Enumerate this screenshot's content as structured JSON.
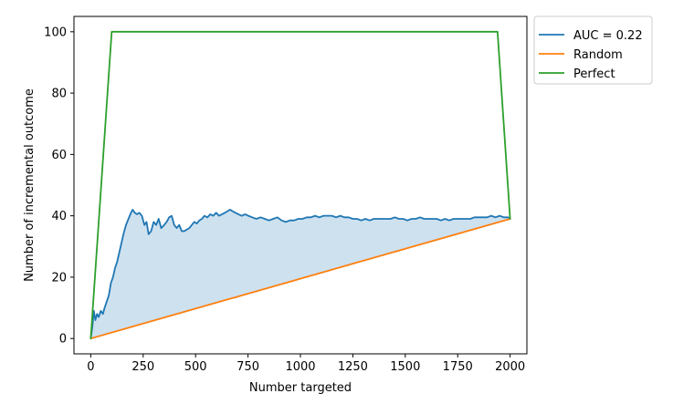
{
  "chart_data": {
    "type": "line",
    "xlabel": "Number targeted",
    "ylabel": "Number of incremental outcome",
    "xlim": [
      -80,
      2080
    ],
    "ylim": [
      -5,
      105
    ],
    "x_ticks": [
      0,
      250,
      500,
      750,
      1000,
      1250,
      1500,
      1750,
      2000
    ],
    "y_ticks": [
      0,
      20,
      40,
      60,
      80,
      100
    ],
    "legend_position": "upper left, outside plot area (right side)",
    "fill_between": {
      "upper": "AUC = 0.22",
      "lower": "Random",
      "color": "#1f77b4",
      "opacity": 0.22
    },
    "series": [
      {
        "name": "AUC = 0.22",
        "color": "#1f77b4",
        "points": [
          [
            0,
            0
          ],
          [
            8,
            4
          ],
          [
            15,
            9
          ],
          [
            22,
            6
          ],
          [
            30,
            8
          ],
          [
            38,
            7
          ],
          [
            48,
            9
          ],
          [
            58,
            8
          ],
          [
            66,
            10
          ],
          [
            76,
            12
          ],
          [
            86,
            14
          ],
          [
            96,
            18
          ],
          [
            106,
            20
          ],
          [
            116,
            23
          ],
          [
            126,
            25
          ],
          [
            136,
            28
          ],
          [
            146,
            31
          ],
          [
            156,
            34
          ],
          [
            168,
            37
          ],
          [
            180,
            39
          ],
          [
            192,
            41
          ],
          [
            200,
            42
          ],
          [
            210,
            41
          ],
          [
            220,
            40.5
          ],
          [
            232,
            41
          ],
          [
            244,
            40
          ],
          [
            256,
            37
          ],
          [
            266,
            38
          ],
          [
            276,
            34
          ],
          [
            288,
            35
          ],
          [
            300,
            38
          ],
          [
            312,
            37
          ],
          [
            324,
            39
          ],
          [
            336,
            36
          ],
          [
            350,
            37
          ],
          [
            362,
            38
          ],
          [
            374,
            39.5
          ],
          [
            386,
            40
          ],
          [
            398,
            37
          ],
          [
            410,
            36
          ],
          [
            422,
            37
          ],
          [
            434,
            35
          ],
          [
            446,
            35
          ],
          [
            458,
            35.5
          ],
          [
            470,
            36
          ],
          [
            482,
            37
          ],
          [
            494,
            38
          ],
          [
            506,
            37.5
          ],
          [
            518,
            38.5
          ],
          [
            530,
            39
          ],
          [
            542,
            40
          ],
          [
            556,
            39.5
          ],
          [
            570,
            40.5
          ],
          [
            584,
            40
          ],
          [
            598,
            41
          ],
          [
            612,
            40
          ],
          [
            626,
            40.5
          ],
          [
            640,
            41
          ],
          [
            652,
            41.5
          ],
          [
            664,
            42
          ],
          [
            676,
            41.5
          ],
          [
            690,
            41
          ],
          [
            704,
            40.5
          ],
          [
            720,
            40
          ],
          [
            736,
            40.5
          ],
          [
            752,
            40
          ],
          [
            770,
            39.5
          ],
          [
            790,
            39
          ],
          [
            810,
            39.5
          ],
          [
            830,
            39
          ],
          [
            850,
            38.5
          ],
          [
            870,
            39
          ],
          [
            890,
            39.5
          ],
          [
            910,
            38.5
          ],
          [
            930,
            38
          ],
          [
            950,
            38.5
          ],
          [
            970,
            38.5
          ],
          [
            990,
            39
          ],
          [
            1010,
            39
          ],
          [
            1030,
            39.5
          ],
          [
            1050,
            39.5
          ],
          [
            1070,
            40
          ],
          [
            1090,
            39.5
          ],
          [
            1110,
            40
          ],
          [
            1130,
            40
          ],
          [
            1150,
            40
          ],
          [
            1170,
            39.5
          ],
          [
            1190,
            40
          ],
          [
            1210,
            39.5
          ],
          [
            1230,
            39.5
          ],
          [
            1250,
            39
          ],
          [
            1270,
            39
          ],
          [
            1290,
            38.5
          ],
          [
            1310,
            39
          ],
          [
            1330,
            38.5
          ],
          [
            1350,
            39
          ],
          [
            1370,
            39
          ],
          [
            1390,
            39
          ],
          [
            1410,
            39
          ],
          [
            1430,
            39
          ],
          [
            1450,
            39.5
          ],
          [
            1470,
            39
          ],
          [
            1490,
            39
          ],
          [
            1510,
            38.5
          ],
          [
            1530,
            39
          ],
          [
            1550,
            39
          ],
          [
            1570,
            39.5
          ],
          [
            1590,
            39
          ],
          [
            1610,
            39
          ],
          [
            1630,
            39
          ],
          [
            1650,
            39
          ],
          [
            1670,
            38.5
          ],
          [
            1690,
            39
          ],
          [
            1710,
            38.5
          ],
          [
            1730,
            39
          ],
          [
            1750,
            39
          ],
          [
            1770,
            39
          ],
          [
            1790,
            39
          ],
          [
            1810,
            39
          ],
          [
            1830,
            39.5
          ],
          [
            1850,
            39.5
          ],
          [
            1870,
            39.5
          ],
          [
            1890,
            39.5
          ],
          [
            1910,
            40
          ],
          [
            1930,
            39.5
          ],
          [
            1950,
            40
          ],
          [
            1970,
            39.5
          ],
          [
            1990,
            39.5
          ],
          [
            2000,
            39
          ]
        ]
      },
      {
        "name": "Random",
        "color": "#ff7f0e",
        "points": [
          [
            0,
            0
          ],
          [
            2000,
            39
          ]
        ]
      },
      {
        "name": "Perfect",
        "color": "#2ca02c",
        "points": [
          [
            0,
            0
          ],
          [
            100,
            100
          ],
          [
            1940,
            100
          ],
          [
            2000,
            39
          ]
        ]
      }
    ]
  }
}
